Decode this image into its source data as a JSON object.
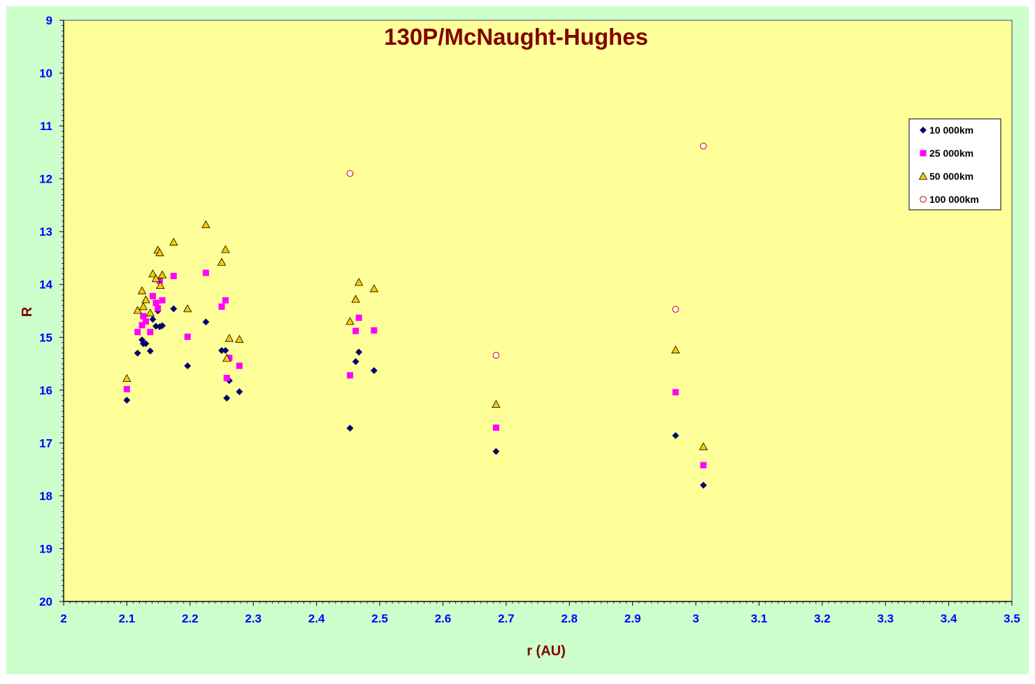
{
  "chart_data": {
    "type": "scatter",
    "title": "130P/McNaught-Hughes",
    "xlabel": "r (AU)",
    "ylabel": "R",
    "xlim": [
      2,
      3.5
    ],
    "ylim": [
      9,
      20
    ],
    "y_inverted": true,
    "x_ticks": [
      "2",
      "2.1",
      "2.2",
      "2.3",
      "2.4",
      "2.5",
      "2.6",
      "2.7",
      "2.8",
      "2.9",
      "3",
      "3.1",
      "3.2",
      "3.3",
      "3.4",
      "3.5"
    ],
    "y_ticks": [
      "9",
      "10",
      "11",
      "12",
      "13",
      "14",
      "15",
      "16",
      "17",
      "18",
      "19",
      "20"
    ],
    "grid": false,
    "legend_position": "top-right",
    "colors": {
      "page_background": "#CCFFCC",
      "plot_background": "#FFFF99",
      "title": "#800000",
      "axis_label": "#800000",
      "tick_label": "#0000FF"
    },
    "series": [
      {
        "name": "10 000km",
        "marker": "diamond",
        "color": "#000080",
        "points": [
          [
            2.1,
            16.19
          ],
          [
            2.117,
            15.3
          ],
          [
            2.124,
            15.05
          ],
          [
            2.126,
            15.12
          ],
          [
            2.13,
            15.12
          ],
          [
            2.137,
            15.26
          ],
          [
            2.141,
            14.66
          ],
          [
            2.146,
            14.79
          ],
          [
            2.149,
            14.5
          ],
          [
            2.152,
            14.8
          ],
          [
            2.156,
            14.78
          ],
          [
            2.174,
            14.46
          ],
          [
            2.196,
            15.54
          ],
          [
            2.225,
            14.71
          ],
          [
            2.25,
            15.25
          ],
          [
            2.256,
            15.25
          ],
          [
            2.258,
            16.15
          ],
          [
            2.262,
            15.82
          ],
          [
            2.278,
            16.03
          ],
          [
            2.453,
            16.72
          ],
          [
            2.462,
            15.46
          ],
          [
            2.467,
            15.28
          ],
          [
            2.491,
            15.63
          ],
          [
            2.684,
            17.16
          ],
          [
            2.968,
            16.86
          ],
          [
            3.012,
            17.8
          ]
        ]
      },
      {
        "name": "25 000km",
        "marker": "square",
        "color": "#FF00FF",
        "points": [
          [
            2.1,
            15.98
          ],
          [
            2.117,
            14.9
          ],
          [
            2.124,
            14.77
          ],
          [
            2.126,
            14.6
          ],
          [
            2.13,
            14.7
          ],
          [
            2.137,
            14.9
          ],
          [
            2.141,
            14.22
          ],
          [
            2.146,
            14.35
          ],
          [
            2.149,
            14.45
          ],
          [
            2.152,
            13.93
          ],
          [
            2.156,
            14.3
          ],
          [
            2.174,
            13.84
          ],
          [
            2.196,
            14.99
          ],
          [
            2.225,
            13.78
          ],
          [
            2.25,
            14.42
          ],
          [
            2.256,
            14.3
          ],
          [
            2.258,
            15.77
          ],
          [
            2.262,
            15.39
          ],
          [
            2.278,
            15.54
          ],
          [
            2.453,
            15.72
          ],
          [
            2.462,
            14.88
          ],
          [
            2.467,
            14.63
          ],
          [
            2.491,
            14.87
          ],
          [
            2.684,
            16.71
          ],
          [
            2.968,
            16.04
          ],
          [
            3.012,
            17.42
          ]
        ]
      },
      {
        "name": "50 000km",
        "marker": "triangle",
        "color": "#FFCC00",
        "points": [
          [
            2.1,
            15.78
          ],
          [
            2.117,
            14.49
          ],
          [
            2.124,
            14.12
          ],
          [
            2.126,
            14.42
          ],
          [
            2.13,
            14.29
          ],
          [
            2.137,
            14.54
          ],
          [
            2.141,
            13.8
          ],
          [
            2.146,
            13.89
          ],
          [
            2.149,
            13.35
          ],
          [
            2.152,
            13.4
          ],
          [
            2.153,
            14.02
          ],
          [
            2.156,
            13.82
          ],
          [
            2.174,
            13.2
          ],
          [
            2.196,
            14.46
          ],
          [
            2.225,
            12.87
          ],
          [
            2.25,
            13.58
          ],
          [
            2.256,
            13.34
          ],
          [
            2.258,
            15.4
          ],
          [
            2.262,
            15.02
          ],
          [
            2.278,
            15.04
          ],
          [
            2.453,
            14.7
          ],
          [
            2.462,
            14.28
          ],
          [
            2.467,
            13.96
          ],
          [
            2.491,
            14.08
          ],
          [
            2.684,
            16.27
          ],
          [
            2.968,
            15.24
          ],
          [
            3.012,
            17.07
          ]
        ]
      },
      {
        "name": "100 000km",
        "marker": "circle",
        "color": "#CC0000",
        "points": [
          [
            2.453,
            11.9
          ],
          [
            2.684,
            15.34
          ],
          [
            2.968,
            14.47
          ],
          [
            3.012,
            11.38
          ]
        ]
      }
    ]
  }
}
